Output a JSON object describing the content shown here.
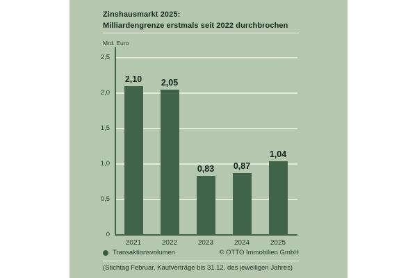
{
  "title": {
    "line1": "Zinshausmarkt 2025:",
    "line2": "Milliardengrenze erstmals seit 2022 durchbrochen"
  },
  "axis_unit": "Mrd. Euro",
  "legend": {
    "label": "Transaktionsvolumen",
    "copyright": "© OTTO Immobilien GmbH"
  },
  "footnote": "(Stichtag Februar, Kaufverträge bis 31.12. des jeweiligen Jahres)",
  "colors": {
    "page_bg": "#ffffff",
    "card_bg": "#b5c8af",
    "bar": "#416349",
    "title_text": "#15291d",
    "grid": "#e2ebdc",
    "axis": "#41604a"
  },
  "chart_data": {
    "type": "bar",
    "categories": [
      "2021",
      "2022",
      "2023",
      "2024",
      "2025"
    ],
    "values": [
      2.1,
      2.05,
      0.83,
      0.87,
      1.04
    ],
    "value_labels": [
      "2,10",
      "2,05",
      "0,83",
      "0,87",
      "1,04"
    ],
    "series_name": "Transaktionsvolumen",
    "title": "Zinshausmarkt 2025: Milliardengrenze erstmals seit 2022 durchbrochen",
    "xlabel": "",
    "ylabel": "Mrd. Euro",
    "ylim": [
      0,
      2.5
    ],
    "yticks": [
      0,
      0.5,
      1.0,
      1.5,
      2.0,
      2.5
    ],
    "ytick_labels": [
      "0",
      "0,5",
      "1,0",
      "1,5",
      "2,0",
      "2,5"
    ],
    "grid": true,
    "legend_position": "bottom-left"
  }
}
